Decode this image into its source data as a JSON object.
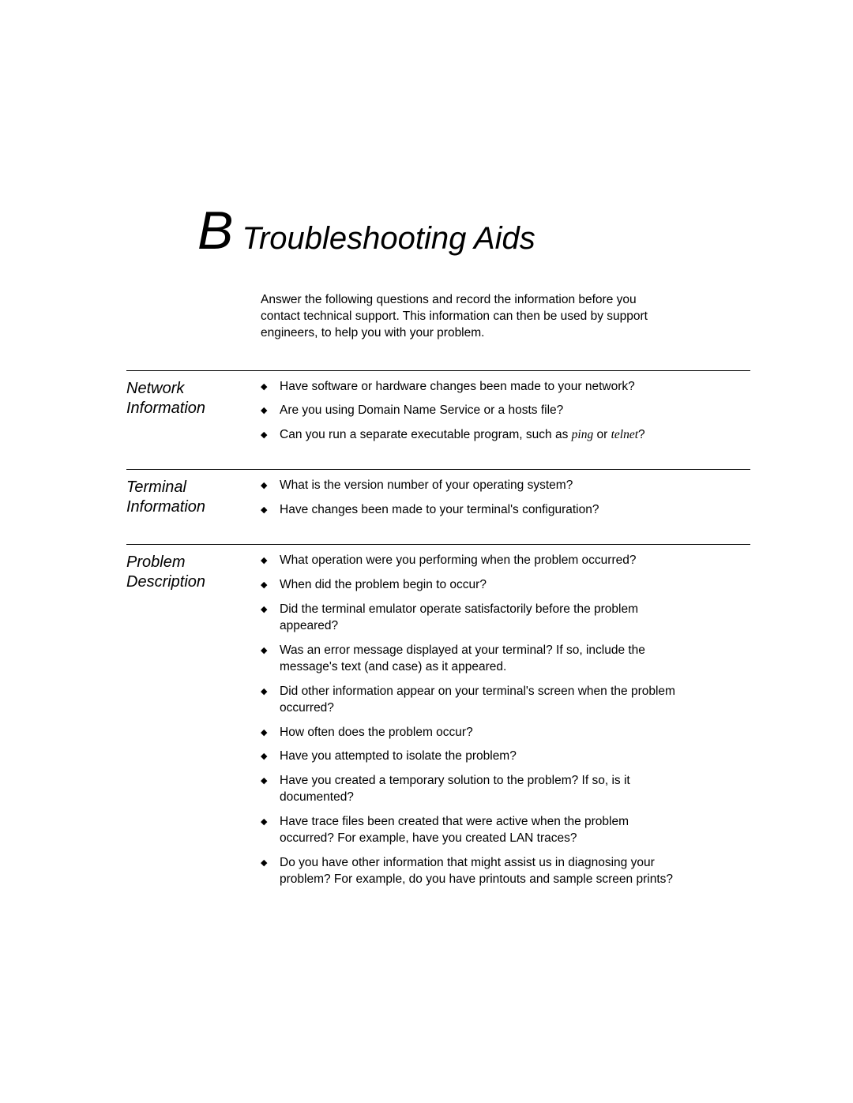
{
  "heading": {
    "letter": "B",
    "title": " Troubleshooting Aids"
  },
  "intro": "Answer the following questions and record the information before you contact technical support. This information can then be used by support engineers, to help you with your problem.",
  "sections": {
    "network": {
      "label": "Network Information",
      "items": [
        {
          "pre": "Have software or hardware changes been made to your network?"
        },
        {
          "pre": "Are you using Domain Name Service or a hosts file?"
        },
        {
          "pre": "Can you run a separate executable program, such as ",
          "it1": "ping",
          "mid": " or ",
          "it2": "telnet",
          "post": "?"
        }
      ]
    },
    "terminal": {
      "label": "Terminal Information",
      "items": [
        {
          "pre": "What is the version number of your operating system?"
        },
        {
          "pre": "Have changes been made to your terminal's configuration?"
        }
      ]
    },
    "problem": {
      "label": "Problem Description",
      "items": [
        {
          "pre": "What operation were you performing when the problem occurred?"
        },
        {
          "pre": "When did the problem begin to occur?"
        },
        {
          "pre": "Did the terminal emulator operate satisfactorily before the problem appeared?"
        },
        {
          "pre": "Was an error message displayed at your terminal? If so, include the message's text (and case) as it appeared."
        },
        {
          "pre": "Did other information appear on your terminal's screen when the problem occurred?"
        },
        {
          "pre": "How often does the problem occur?"
        },
        {
          "pre": "Have you attempted to isolate the problem?"
        },
        {
          "pre": "Have you created a temporary solution to the problem? If so, is it documented?"
        },
        {
          "pre": "Have trace files been created that were active when the problem occurred? For example, have you created LAN traces?"
        },
        {
          "pre": "Do you have other information that might assist us in diagnosing your problem? For example, do you have printouts and sample screen prints?"
        }
      ]
    }
  }
}
